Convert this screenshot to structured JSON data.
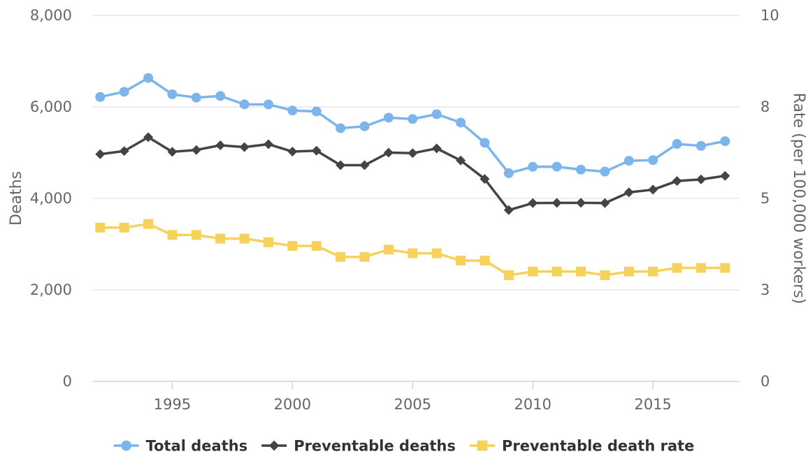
{
  "chart_data": {
    "type": "line",
    "x": [
      1992,
      1993,
      1994,
      1995,
      1996,
      1997,
      1998,
      1999,
      2000,
      2001,
      2002,
      2003,
      2004,
      2005,
      2006,
      2007,
      2008,
      2009,
      2010,
      2011,
      2012,
      2013,
      2014,
      2015,
      2016,
      2017,
      2018
    ],
    "xticks": [
      "1995",
      "2000",
      "2005",
      "2010",
      "2015"
    ],
    "xlim": [
      1991.7,
      2018.6
    ],
    "y_left": {
      "label": "Deaths",
      "lim": [
        0,
        8000
      ],
      "ticks": [
        "0",
        "2,000",
        "4,000",
        "6,000",
        "8,000"
      ],
      "tick_values": [
        0,
        2000,
        4000,
        6000,
        8000
      ]
    },
    "y_right": {
      "label": "Rate (per 100,000 workers)",
      "lim": [
        0,
        10
      ],
      "ticks": [
        "0",
        "3",
        "5",
        "8",
        "10"
      ],
      "tick_values": [
        0,
        2.5,
        5,
        7.5,
        10
      ]
    },
    "series": [
      {
        "name": "Total deaths",
        "axis": "left",
        "color": "#7cb5ec",
        "marker": "circle",
        "values": [
          6217,
          6331,
          6632,
          6275,
          6202,
          6238,
          6055,
          6054,
          5920,
          5900,
          5534,
          5575,
          5764,
          5734,
          5840,
          5657,
          5214,
          4551,
          4690,
          4693,
          4628,
          4585,
          4821,
          4836,
          5190,
          5147,
          5250
        ]
      },
      {
        "name": "Preventable deaths",
        "axis": "left",
        "color": "#434348",
        "marker": "diamond",
        "values": [
          4965,
          5035,
          5338,
          5018,
          5058,
          5160,
          5120,
          5184,
          5022,
          5042,
          4726,
          4725,
          5000,
          4988,
          5092,
          4829,
          4423,
          3744,
          3896,
          3901,
          3903,
          3896,
          4131,
          4190,
          4379,
          4414,
          4493
        ]
      },
      {
        "name": "Preventable death rate",
        "axis": "right",
        "color": "#f7d25a",
        "marker": "square",
        "values": [
          4.2,
          4.2,
          4.3,
          4.0,
          4.0,
          3.9,
          3.9,
          3.8,
          3.7,
          3.7,
          3.4,
          3.4,
          3.6,
          3.5,
          3.5,
          3.3,
          3.3,
          2.9,
          3.0,
          3.0,
          3.0,
          2.9,
          3.0,
          3.0,
          3.1,
          3.1,
          3.1
        ]
      }
    ],
    "legend": {
      "position": "bottom-center"
    },
    "grid": true
  }
}
